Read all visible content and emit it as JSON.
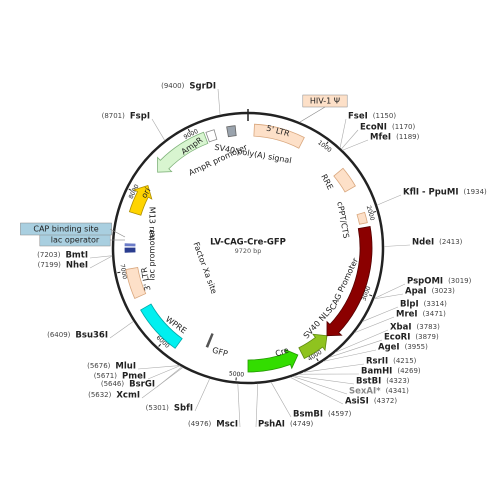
{
  "title": "LV-CAG-Cre-GFP",
  "size": "9720 bp",
  "ticks": [
    1000,
    2000,
    3000,
    4000,
    5000,
    6000,
    7000,
    8000,
    9000
  ],
  "features": [
    "5' LTR",
    "HIV-1 Ψ",
    "SV40 poly(A) signal",
    "RRE",
    "cPPT/CTS",
    "CAG Promoter",
    "SV40 NLS",
    "Cre",
    "GFP",
    "WPRE",
    "3' LTR",
    "lac promoter",
    "M13 rev",
    "lac operator",
    "CAP binding site",
    "ori",
    "AmpR",
    "AmpR promoter",
    "Factor Xa site"
  ],
  "enzymes": [
    {
      "name": "SgrDI",
      "position": "(9400)"
    },
    {
      "name": "FspI",
      "position": "(8701)"
    },
    {
      "name": "FseI",
      "position": "(1150)"
    },
    {
      "name": "EcoNI",
      "position": "(1170)"
    },
    {
      "name": "MfeI",
      "position": "(1189)"
    },
    {
      "name": "KflI - PpuMI",
      "position": "(1934)"
    },
    {
      "name": "NdeI",
      "position": "(2413)"
    },
    {
      "name": "PspOMI",
      "position": "(3019)"
    },
    {
      "name": "ApaI",
      "position": "(3023)"
    },
    {
      "name": "BlpI",
      "position": "(3314)"
    },
    {
      "name": "MreI",
      "position": "(3471)"
    },
    {
      "name": "XbaI",
      "position": "(3783)"
    },
    {
      "name": "EcoRI",
      "position": "(3879)"
    },
    {
      "name": "AgeI",
      "position": "(3955)"
    },
    {
      "name": "RsrII",
      "position": "(4215)"
    },
    {
      "name": "BamHI",
      "position": "(4269)"
    },
    {
      "name": "BstBI",
      "position": "(4323)"
    },
    {
      "name": "SexAI*",
      "position": "(4341)"
    },
    {
      "name": "AsiSI",
      "position": "(4372)"
    },
    {
      "name": "BsmBI",
      "position": "(4597)"
    },
    {
      "name": "PshAI",
      "position": "(4749)"
    },
    {
      "name": "MscI",
      "position": "(4976)"
    },
    {
      "name": "SbfI",
      "position": "(5301)"
    },
    {
      "name": "XcmI",
      "position": "(5632)"
    },
    {
      "name": "BsrGI",
      "position": "(5646)"
    },
    {
      "name": "PmeI",
      "position": "(5671)"
    },
    {
      "name": "MluI",
      "position": "(5676)"
    },
    {
      "name": "Bsu36I",
      "position": "(6409)"
    },
    {
      "name": "NheI",
      "position": "(7199)"
    },
    {
      "name": "BmtI",
      "position": "(7203)"
    }
  ]
}
